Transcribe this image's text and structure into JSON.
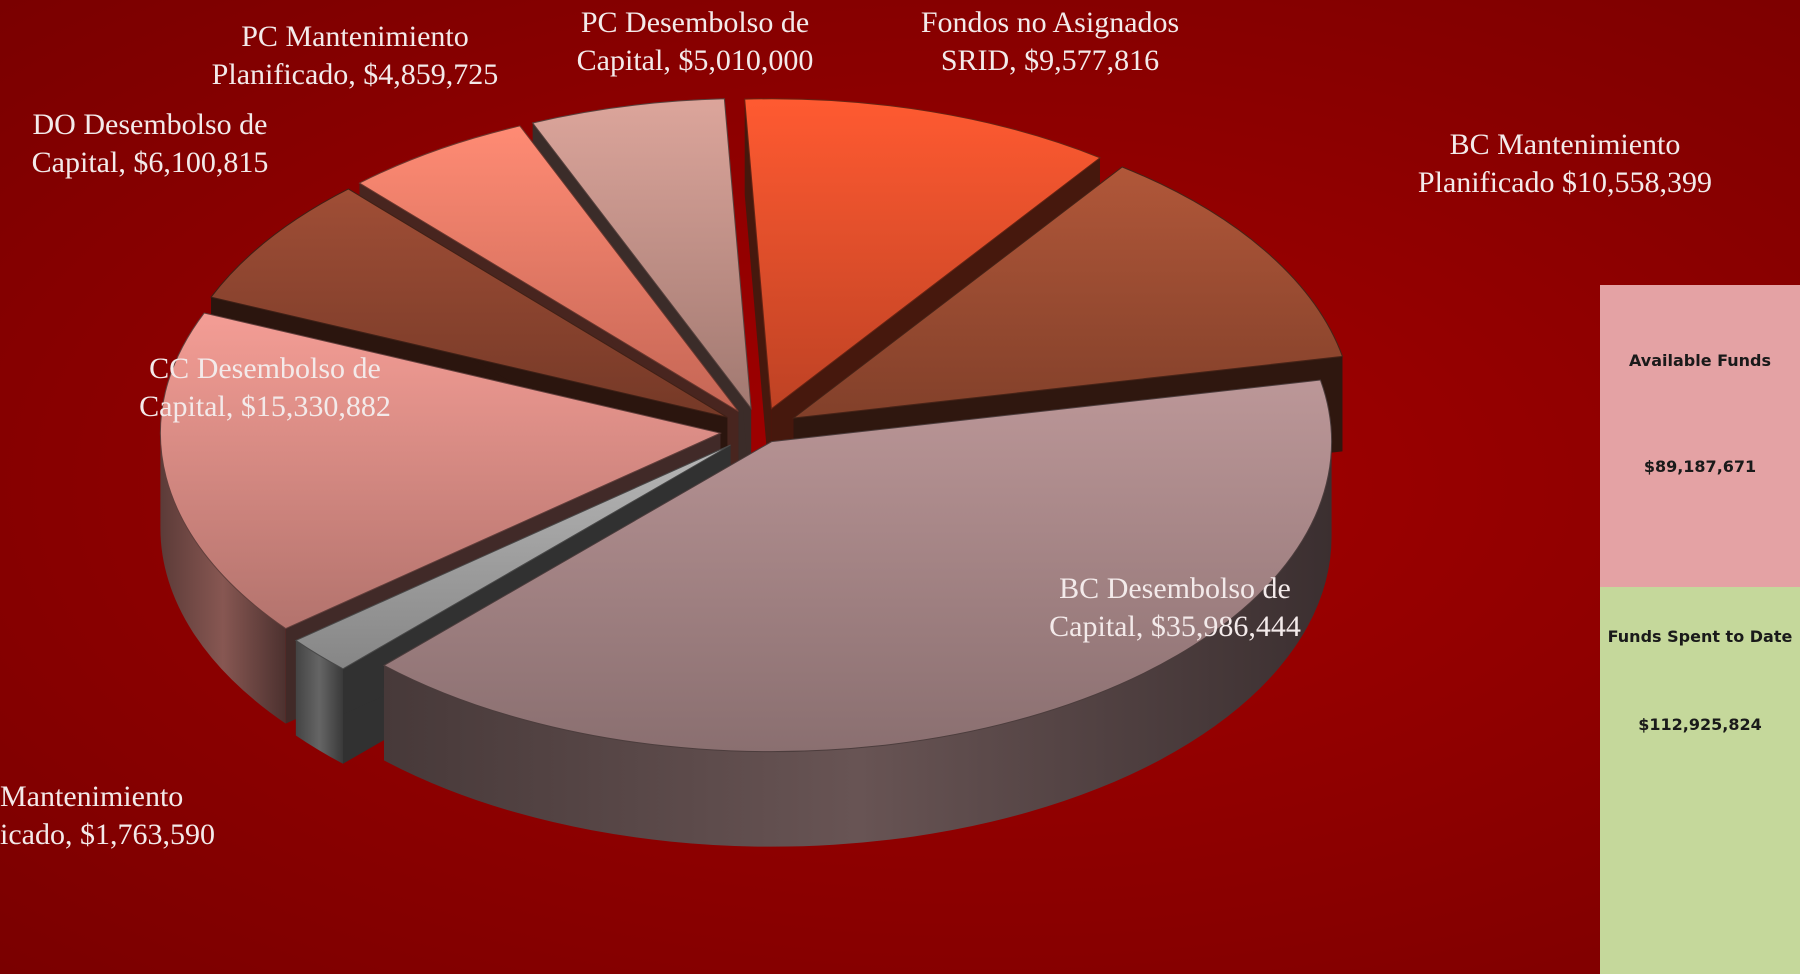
{
  "chart_data": {
    "type": "pie",
    "title": "",
    "slices": [
      {
        "label_lines": [
          "BC Desembolso de",
          "Capital, $35,986,444"
        ],
        "value": 35986444,
        "color": "#a88788"
      },
      {
        "label_lines": [
          "Mantenimiento",
          "icado, $1,763,590"
        ],
        "value": 1763590,
        "color": "#a3a3a3"
      },
      {
        "label_lines": [
          "CC Desembolso de",
          "Capital, $15,330,882"
        ],
        "value": 15330882,
        "color": "#da8c85"
      },
      {
        "label_lines": [
          "DO Desembolso de",
          "Capital, $6,100,815"
        ],
        "value": 6100815,
        "color": "#8f4630"
      },
      {
        "label_lines": [
          "PC Mantenimiento",
          "Planificado, $4,859,725"
        ],
        "value": 4859725,
        "color": "#f07c68"
      },
      {
        "label_lines": [
          "PC Desembolso de",
          "Capital, $5,010,000"
        ],
        "value": 5010000,
        "color": "#c4938a"
      },
      {
        "label_lines": [
          "Fondos no Asignados",
          "SRID, $9,577,816"
        ],
        "value": 9577816,
        "color": "#e8502c"
      },
      {
        "label_lines": [
          "BC Mantenimiento",
          "Planificado $10,558,399"
        ],
        "value": 10558399,
        "color": "#9e4e33"
      }
    ]
  },
  "side_panel": {
    "available_label": "Available Funds",
    "available_value": "$89,187,671",
    "available_color": "#e4a2a4",
    "spent_label": "Funds Spent to Date",
    "spent_value": "$112,925,824",
    "spent_color": "#c5d89b"
  }
}
